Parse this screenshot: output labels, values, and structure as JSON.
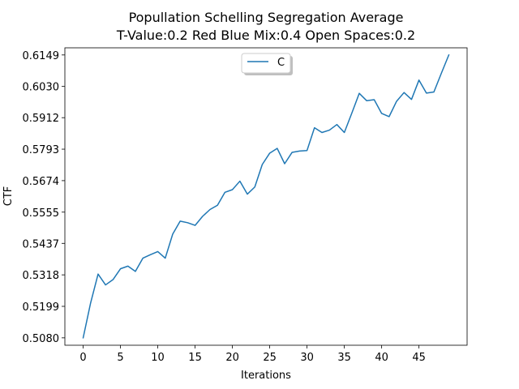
{
  "chart_data": {
    "type": "line",
    "title": "Popullation Schelling Segregation Average",
    "subtitle": "T-Value:0.2 Red Blue Mix:0.4 Open Spaces:0.2",
    "xlabel": "Iterations",
    "ylabel": "CTF",
    "xlim": [
      -2.45,
      51.45
    ],
    "ylim": [
      0.5052,
      0.6176
    ],
    "x_ticks": [
      0,
      5,
      10,
      15,
      20,
      25,
      30,
      35,
      40,
      45
    ],
    "y_ticks": [
      0.508,
      0.5199,
      0.5318,
      0.5437,
      0.5555,
      0.5674,
      0.5793,
      0.5912,
      0.603,
      0.6149
    ],
    "y_tick_labels": [
      "0.5080",
      "0.5199",
      "0.5318",
      "0.5437",
      "0.5555",
      "0.5674",
      "0.5793",
      "0.5912",
      "0.6030",
      "0.6149"
    ],
    "grid": false,
    "legend": {
      "position": "top-center",
      "entries": [
        "C"
      ]
    },
    "series": [
      {
        "name": "C",
        "color": "#1f77b4",
        "x": [
          0,
          1,
          2,
          3,
          4,
          5,
          6,
          7,
          8,
          9,
          10,
          11,
          12,
          13,
          14,
          15,
          16,
          17,
          18,
          19,
          20,
          21,
          22,
          23,
          24,
          25,
          26,
          27,
          28,
          29,
          30,
          31,
          32,
          33,
          34,
          35,
          36,
          37,
          38,
          39,
          40,
          41,
          42,
          43,
          44,
          45,
          46,
          47,
          48,
          49
        ],
        "values": [
          0.508,
          0.5212,
          0.5321,
          0.528,
          0.53,
          0.5341,
          0.5351,
          0.5331,
          0.5381,
          0.5394,
          0.5406,
          0.5381,
          0.5472,
          0.5521,
          0.5515,
          0.5505,
          0.5539,
          0.5565,
          0.5581,
          0.563,
          0.564,
          0.5672,
          0.5623,
          0.565,
          0.5735,
          0.5778,
          0.5796,
          0.5738,
          0.5781,
          0.5786,
          0.5788,
          0.5874,
          0.5856,
          0.5865,
          0.5886,
          0.5856,
          0.5929,
          0.6004,
          0.5976,
          0.598,
          0.5928,
          0.5916,
          0.5974,
          0.6007,
          0.5981,
          0.6054,
          0.6005,
          0.6009,
          0.608,
          0.6149
        ]
      }
    ]
  }
}
